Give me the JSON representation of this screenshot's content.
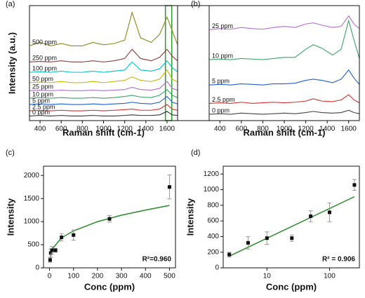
{
  "chart_data": [
    {
      "type": "line",
      "panel_label": "(a)",
      "x_label": "Raman shift (cm-1)",
      "y_label": "Intensity (a.u.)",
      "xlim": [
        300,
        1700
      ],
      "xticks": [
        400,
        600,
        800,
        1000,
        1200,
        1400,
        1600
      ],
      "ylim": [
        0,
        100
      ],
      "highlight_x": [
        1585,
        1645
      ],
      "highlight_color": "#2a9a2a",
      "x": [
        300,
        400,
        500,
        600,
        700,
        800,
        900,
        1000,
        1100,
        1200,
        1270,
        1350,
        1450,
        1530,
        1600,
        1650,
        1700
      ],
      "series": [
        {
          "name": "0 ppm",
          "color": "#333333",
          "values": [
            4,
            4.5,
            4,
            4.5,
            4,
            4,
            4.5,
            4,
            4,
            4.5,
            5,
            4.5,
            4.5,
            5,
            8,
            5,
            4.5
          ]
        },
        {
          "name": "2.5 ppm",
          "color": "#d03030",
          "values": [
            8.5,
            9,
            8.5,
            9,
            8.5,
            8.5,
            9,
            8.5,
            9,
            9.5,
            10,
            9,
            9,
            10,
            14,
            10,
            9
          ]
        },
        {
          "name": "5 ppm",
          "color": "#1f5fd0",
          "values": [
            14,
            14.5,
            14,
            14.5,
            14,
            14,
            14.5,
            14,
            14.5,
            15,
            16,
            15,
            14.5,
            16,
            21,
            16,
            14.5
          ]
        },
        {
          "name": "10 ppm",
          "color": "#3aa36a",
          "values": [
            19.5,
            20,
            19.5,
            20,
            19.5,
            19.5,
            20,
            19.5,
            20,
            21,
            22,
            20.5,
            20,
            22,
            27,
            22,
            20
          ]
        },
        {
          "name": "25 ppm",
          "color": "#b06fd0",
          "values": [
            26,
            26.5,
            26,
            26.5,
            26,
            26,
            26.5,
            26,
            26.5,
            27,
            29,
            27,
            26.5,
            28,
            34,
            28,
            26.5
          ]
        },
        {
          "name": "50 ppm",
          "color": "#c8b400",
          "values": [
            33,
            33.5,
            33,
            34,
            33,
            33,
            34,
            33,
            34,
            35,
            38,
            35,
            34,
            36,
            44,
            36,
            33.5
          ]
        },
        {
          "name": "100 ppm",
          "color": "#00c0c8",
          "values": [
            42,
            42.5,
            42,
            43,
            42,
            42,
            43,
            42,
            43,
            44,
            51,
            44,
            43,
            45,
            52,
            46,
            42.5
          ]
        },
        {
          "name": "250 ppm",
          "color": "#8b3a3a",
          "values": [
            51,
            51.5,
            51,
            52,
            51,
            51,
            52,
            51,
            52,
            54,
            62,
            54,
            52,
            55,
            62,
            56,
            52
          ]
        },
        {
          "name": "500 ppm",
          "color": "#8b8b1a",
          "values": [
            65,
            68,
            65,
            67,
            65,
            65,
            68,
            66,
            67,
            70,
            94,
            72,
            68,
            75,
            90,
            78,
            66
          ]
        }
      ]
    },
    {
      "type": "line",
      "panel_label": "(b)",
      "x_label": "Raman shift (cm-1)",
      "xlim": [
        300,
        1700
      ],
      "xticks": [
        400,
        600,
        800,
        1000,
        1200,
        1400,
        1600
      ],
      "ylim": [
        0,
        100
      ],
      "x": [
        300,
        400,
        500,
        600,
        700,
        800,
        900,
        1000,
        1100,
        1200,
        1270,
        1350,
        1450,
        1530,
        1600,
        1650,
        1700
      ],
      "series": [
        {
          "name": "0 ppm",
          "color": "#444444",
          "values": [
            5.5,
            6,
            5.5,
            6.5,
            6,
            5.5,
            6,
            6.5,
            6,
            7,
            8,
            7,
            6.5,
            7,
            9,
            7,
            6
          ]
        },
        {
          "name": "2.5 ppm",
          "color": "#d03030",
          "values": [
            15,
            15.5,
            15,
            16,
            15,
            15.5,
            16,
            15.5,
            16,
            17,
            19,
            17,
            16.5,
            18,
            22.5,
            18,
            15.5
          ]
        },
        {
          "name": "5 ppm",
          "color": "#1f5fd0",
          "values": [
            31,
            31.5,
            31,
            32,
            31.5,
            31,
            32,
            32,
            32.5,
            35,
            36,
            35,
            33,
            36,
            44,
            37,
            31.5
          ]
        },
        {
          "name": "10 ppm",
          "color": "#3aa36a",
          "values": [
            53,
            53.5,
            53,
            54,
            53.5,
            53,
            54,
            55,
            55,
            62,
            66,
            63,
            57,
            62,
            87,
            70,
            54
          ]
        },
        {
          "name": "25 ppm",
          "color": "#b06fd0",
          "values": [
            79,
            80,
            79.5,
            81,
            80,
            79.5,
            81,
            82,
            81,
            84,
            85,
            83,
            81,
            82,
            91,
            84,
            80
          ]
        }
      ]
    },
    {
      "type": "scatter",
      "panel_label": "(c)",
      "x_label": "Conc (ppm)",
      "y_label": "Intensity",
      "annotation": "R²=0.960",
      "xlim": [
        -25,
        525
      ],
      "xticks": [
        0,
        100,
        200,
        300,
        400,
        500
      ],
      "ylim": [
        0,
        2200
      ],
      "yticks": [
        0,
        500,
        1000,
        1500,
        2000
      ],
      "x": [
        2.5,
        5,
        10,
        25,
        50,
        100,
        250,
        500
      ],
      "values": [
        170,
        320,
        380,
        380,
        660,
        710,
        1060,
        1750
      ],
      "errors": [
        50,
        90,
        80,
        40,
        80,
        110,
        70,
        260
      ],
      "color": "#111111",
      "fit": {
        "color": "#2a8a2a",
        "x": [
          2.5,
          10,
          50,
          100,
          200,
          300,
          400,
          500
        ],
        "values": [
          200,
          400,
          650,
          800,
          1000,
          1140,
          1250,
          1350
        ]
      }
    },
    {
      "type": "scatter",
      "panel_label": "(d)",
      "x_label": "Conc (ppm)",
      "y_label": "Intensity",
      "annotation": "R² = 0.906",
      "xscale": "log",
      "xlim": [
        2,
        300
      ],
      "xticks": [
        10,
        100
      ],
      "ylim": [
        0,
        1300
      ],
      "yticks": [
        0,
        200,
        400,
        600,
        800,
        1000,
        1200
      ],
      "x": [
        2.5,
        5,
        10,
        25,
        50,
        100,
        250
      ],
      "values": [
        170,
        320,
        380,
        380,
        660,
        710,
        1060
      ],
      "errors": [
        30,
        80,
        80,
        40,
        70,
        120,
        70
      ],
      "color": "#111111",
      "fit": {
        "color": "#2a8a2a",
        "x": [
          2.5,
          250
        ],
        "values": [
          150,
          910
        ]
      }
    }
  ]
}
